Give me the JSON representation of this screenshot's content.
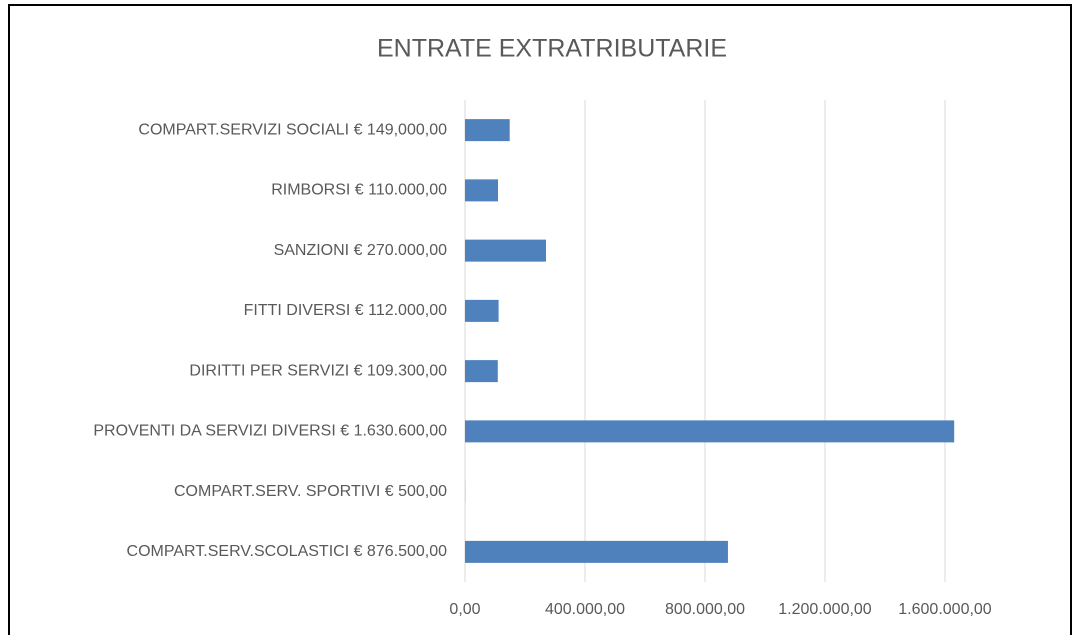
{
  "chart_data": {
    "type": "barh",
    "title": "ENTRATE EXTRATRIBUTARIE",
    "categories": [
      "COMPART.SERVIZI SOCIALI € 149,000,00",
      "RIMBORSI € 110.000,00",
      "SANZIONI € 270.000,00",
      "FITTI DIVERSI € 112.000,00",
      "DIRITTI PER SERVIZI € 109.300,00",
      "PROVENTI DA SERVIZI DIVERSI € 1.630.600,00",
      "COMPART.SERV. SPORTIVI € 500,00",
      "COMPART.SERV.SCOLASTICI € 876.500,00"
    ],
    "values": [
      149000,
      110000,
      270000,
      112000,
      109300,
      1630600,
      500,
      876500
    ],
    "color": "#4f81bd",
    "xlim": [
      0,
      1700000
    ],
    "xticks": [
      {
        "value": 0,
        "label": "0,00"
      },
      {
        "value": 400000,
        "label": "400.000,00"
      },
      {
        "value": 800000,
        "label": "800.000,00"
      },
      {
        "value": 1200000,
        "label": "1.200.000,00"
      },
      {
        "value": 1600000,
        "label": "1.600.000,00"
      }
    ],
    "grid": true
  }
}
